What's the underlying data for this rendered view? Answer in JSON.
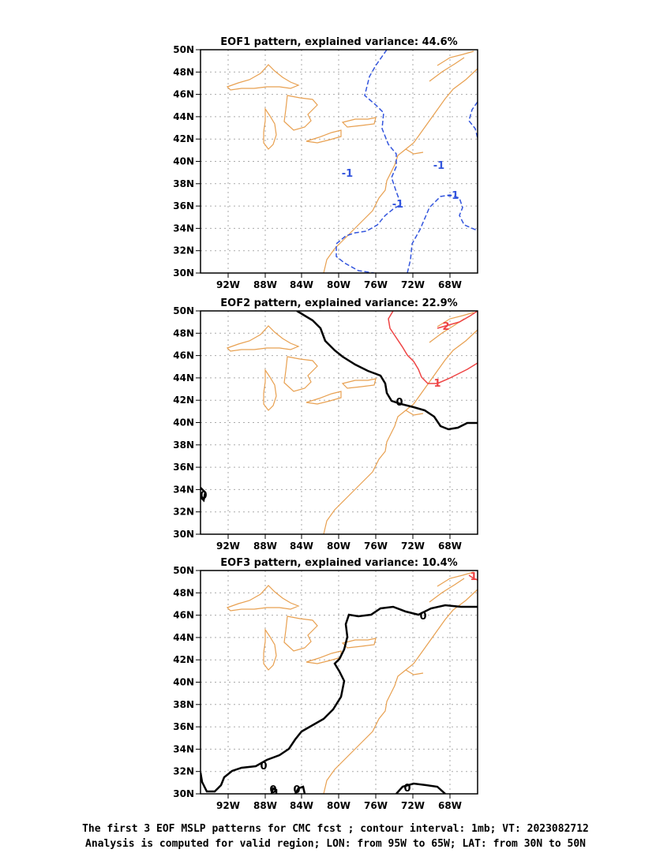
{
  "map": {
    "lon_ticks": [
      "92W",
      "88W",
      "84W",
      "80W",
      "76W",
      "72W",
      "68W"
    ],
    "lat_ticks": [
      "50N",
      "48N",
      "46N",
      "44N",
      "42N",
      "40N",
      "38N",
      "36N",
      "34N",
      "32N",
      "30N"
    ],
    "lon_range": [
      -95,
      -65
    ],
    "lat_range": [
      30,
      50
    ]
  },
  "colors": {
    "coastline": "#e8a050",
    "negative": "#3355dd",
    "positive": "#ee4444",
    "zero": "#000000",
    "grid": "#aaaaaa"
  },
  "panels": [
    {
      "title": "EOF1 pattern, explained variance: 44.6%",
      "contour_labels": [
        "-1",
        "-1",
        "-1",
        "-1"
      ]
    },
    {
      "title": "EOF2 pattern, explained variance: 22.9%",
      "contour_labels": [
        "2",
        "1",
        "0",
        "0"
      ]
    },
    {
      "title": "EOF3 pattern, explained variance: 10.4%",
      "contour_labels": [
        "1",
        "0",
        "0",
        "0",
        "0",
        "0"
      ]
    }
  ],
  "caption": {
    "line1": "The first 3 EOF MSLP patterns for CMC fcst ; contour interval: 1mb; VT: 2023082712",
    "line2": "Analysis is computed for valid region; LON: from 95W to 65W; LAT: from 30N to 50N"
  }
}
